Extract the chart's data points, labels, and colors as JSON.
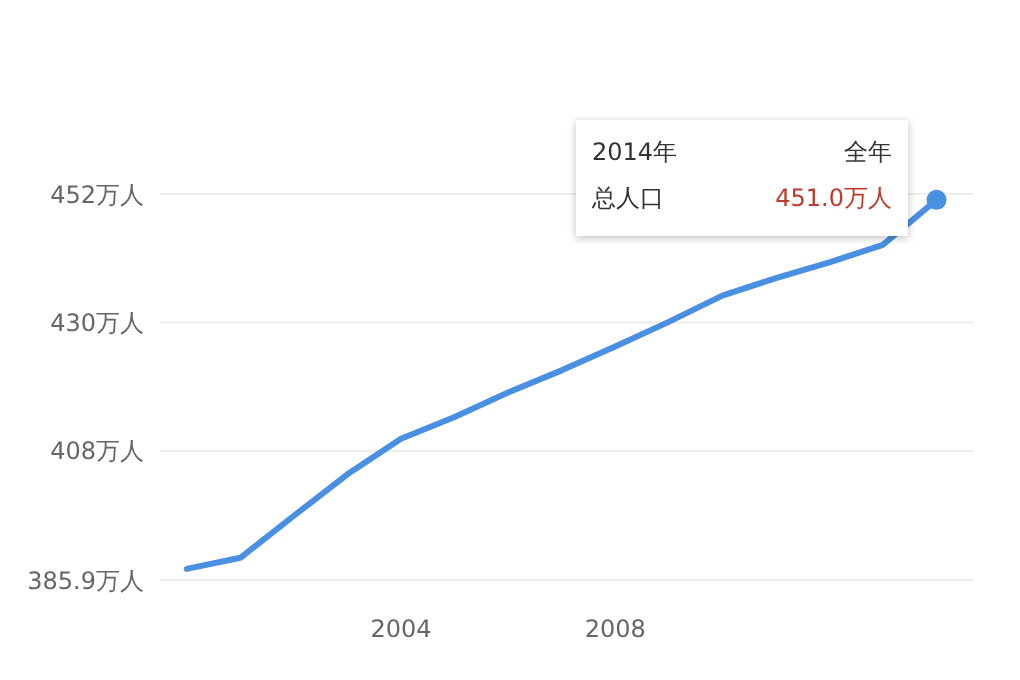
{
  "chart_data": {
    "type": "line",
    "x": [
      2000,
      2001,
      2002,
      2003,
      2004,
      2005,
      2006,
      2007,
      2008,
      2009,
      2010,
      2011,
      2012,
      2013,
      2014
    ],
    "series": [
      {
        "color": "#4a90e2",
        "values": [
          387.8,
          389.7,
          396.9,
          404.0,
          410.1,
          413.8,
          418.0,
          421.8,
          425.9,
          430.1,
          434.6,
          437.6,
          440.3,
          443.3,
          451.0
        ]
      }
    ],
    "xlim": [
      1999.5,
      2014.7
    ],
    "xticks": [
      2004,
      2008
    ],
    "ylim": [
      385.9,
      452
    ],
    "yticks": [
      {
        "value": 385.9,
        "label": "385.9万人"
      },
      {
        "value": 408,
        "label": "408万人"
      },
      {
        "value": 430,
        "label": "430万人"
      },
      {
        "value": 452,
        "label": "452万人"
      }
    ],
    "grid": "y",
    "marker": "none",
    "line_style": "solid",
    "annotations": [
      "2014年",
      "全年",
      "总人口",
      {
        "text": "451.0万人",
        "x": 2014,
        "y": 451.0
      }
    ]
  }
}
